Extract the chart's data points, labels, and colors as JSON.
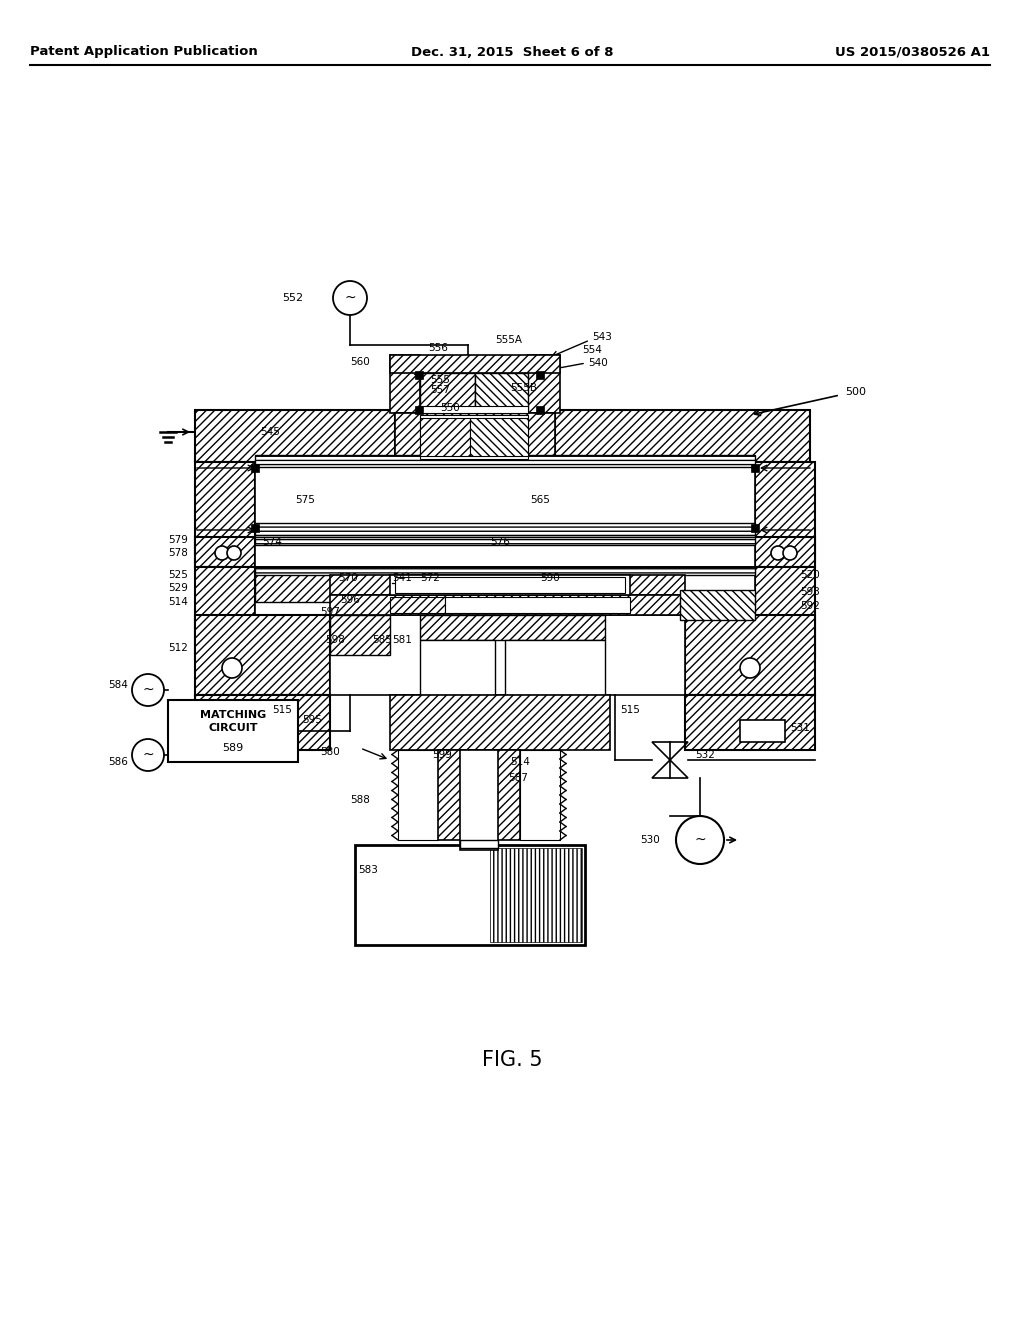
{
  "bg_color": "#ffffff",
  "header_left": "Patent Application Publication",
  "header_center": "Dec. 31, 2015  Sheet 6 of 8",
  "header_right": "US 2015/0380526 A1",
  "figure_label": "FIG. 5"
}
